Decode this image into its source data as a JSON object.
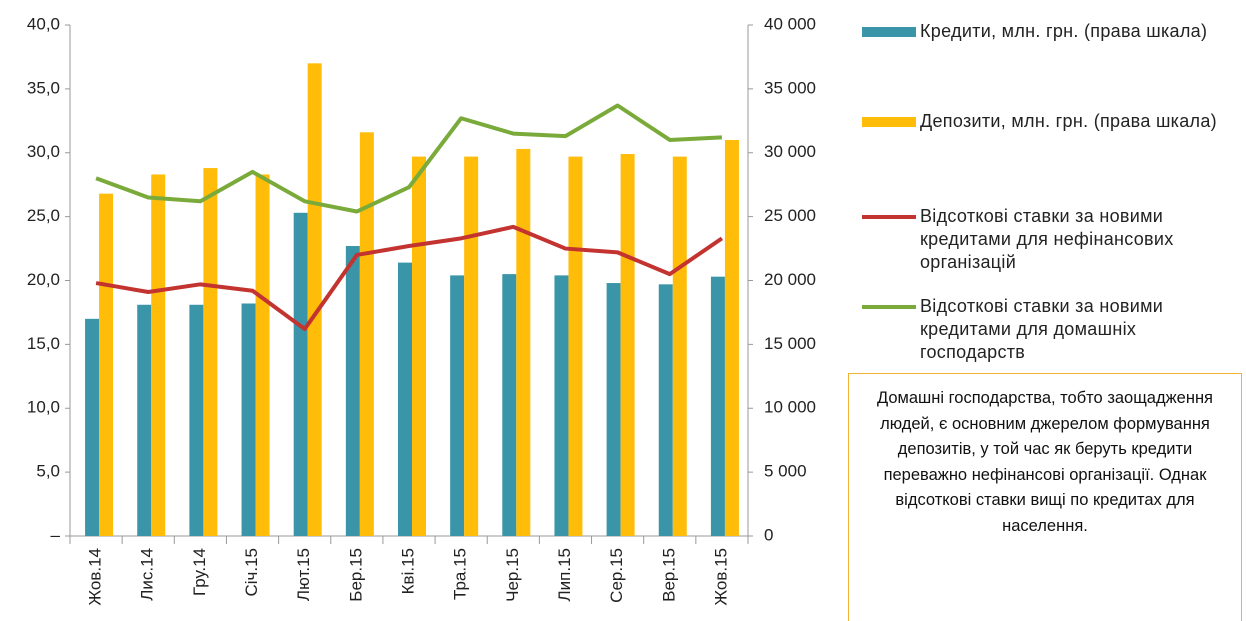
{
  "chart_data": {
    "type": "bar-line",
    "categories": [
      "Жов.14",
      "Лис.14",
      "Гру.14",
      "Січ.15",
      "Лют.15",
      "Бер.15",
      "Кві.15",
      "Тра.15",
      "Чер.15",
      "Лип.15",
      "Сер.15",
      "Вер.15",
      "Жов.15"
    ],
    "series": [
      {
        "name": "Кредити, млн. грн. (права шкала)",
        "type": "bar",
        "axis": "y2",
        "color": "#3a95a8",
        "values": [
          17000,
          18100,
          18100,
          18200,
          25300,
          22700,
          21400,
          20400,
          20500,
          20400,
          19800,
          19700,
          20300
        ]
      },
      {
        "name": "Депозити, млн. грн. (права шкала)",
        "type": "bar",
        "axis": "y2",
        "color": "#ffbd0a",
        "values": [
          26800,
          28300,
          28800,
          28300,
          37000,
          31600,
          29700,
          29700,
          30300,
          29700,
          29900,
          29700,
          31000
        ]
      },
      {
        "name": "Відсоткові ставки за новими кредитами для нефінансових організацій",
        "type": "line",
        "axis": "y",
        "color": "#c3332f",
        "values": [
          19.8,
          19.1,
          19.7,
          19.2,
          16.2,
          22.0,
          22.7,
          23.3,
          24.2,
          22.5,
          22.2,
          20.5,
          23.3
        ]
      },
      {
        "name": "Відсоткові ставки за новими кредитами для домашніх господарств",
        "type": "line",
        "axis": "y",
        "color": "#7aaa3a",
        "values": [
          28.0,
          26.5,
          26.2,
          28.5,
          26.2,
          25.4,
          27.3,
          32.7,
          31.5,
          31.3,
          33.7,
          31.0,
          31.2
        ]
      }
    ],
    "ylim": [
      0,
      40
    ],
    "yticks": [
      {
        "value": 0,
        "label": "–"
      },
      {
        "value": 5,
        "label": "5,0"
      },
      {
        "value": 10,
        "label": "10,0"
      },
      {
        "value": 15,
        "label": "15,0"
      },
      {
        "value": 20,
        "label": "20,0"
      },
      {
        "value": 25,
        "label": "25,0"
      },
      {
        "value": 30,
        "label": "30,0"
      },
      {
        "value": 35,
        "label": "35,0"
      },
      {
        "value": 40,
        "label": "40,0"
      }
    ],
    "y2lim": [
      0,
      40000
    ],
    "y2ticks": [
      0,
      {
        "value": 5000,
        "label": "5 000"
      },
      {
        "value": 10000,
        "label": "10 000"
      },
      {
        "value": 15000,
        "label": "15 000"
      },
      {
        "value": 20000,
        "label": "20 000"
      },
      {
        "value": 25000,
        "label": "25 000"
      },
      {
        "value": 30000,
        "label": "30 000"
      },
      {
        "value": 35000,
        "label": "35 000"
      },
      {
        "value": 40000,
        "label": "40 000"
      }
    ],
    "annotation": "Домашні господарства, тобто заощадження людей, є основним джерелом формування депозитів, у той час як беруть кредити переважно нефінансові організації. Однак  відсоткові ставки вищі по кредитах для населення."
  }
}
